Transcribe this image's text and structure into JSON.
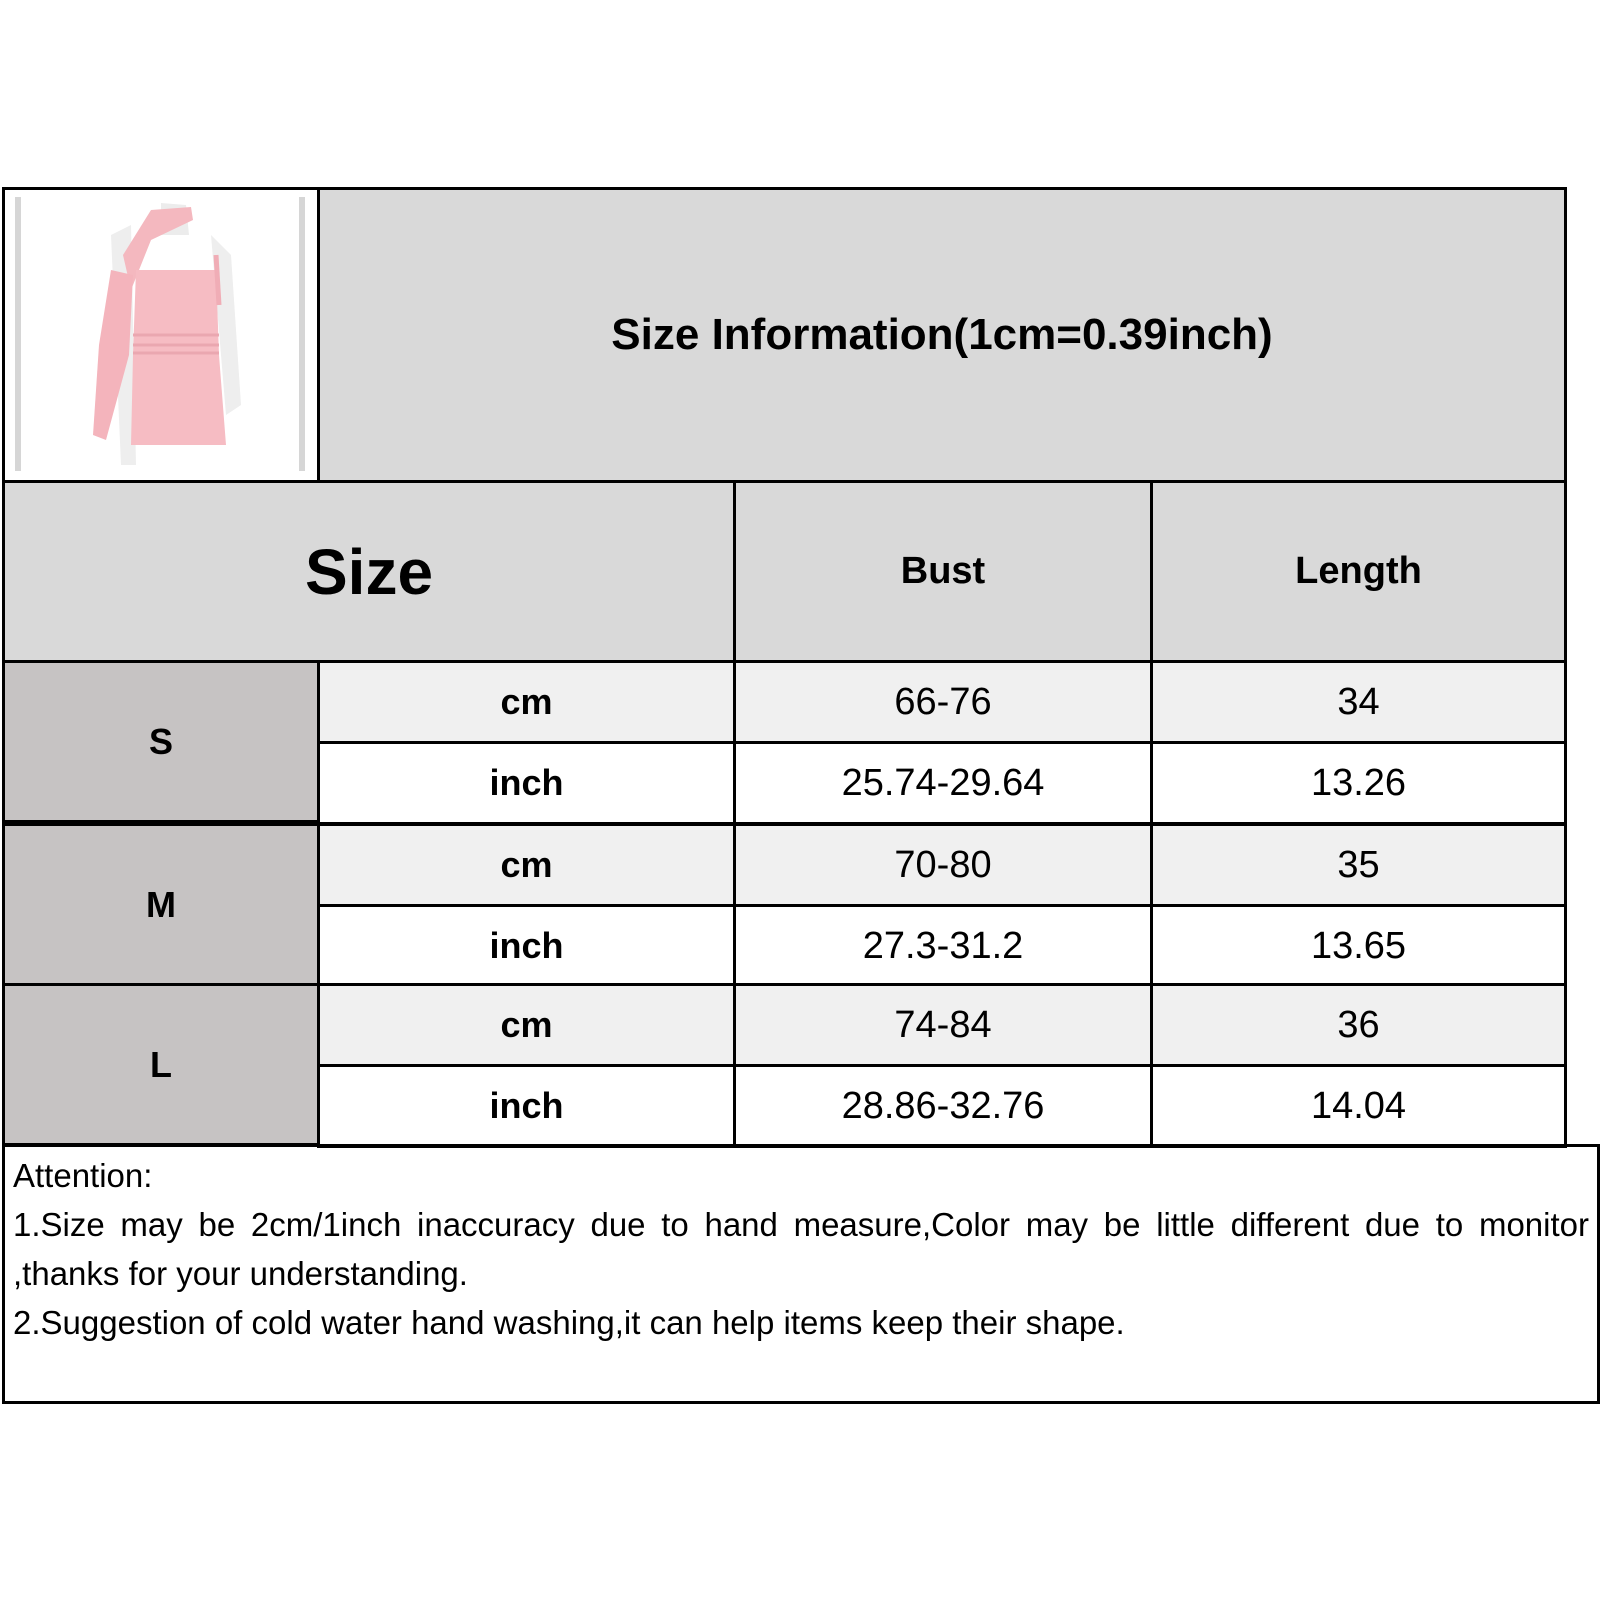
{
  "title": "Size Information(1cm=0.39inch)",
  "product_image": {
    "description_icon": "pink-one-shoulder-dress-photo",
    "color": "#f4b8bf"
  },
  "header": {
    "size": "Size",
    "columns": [
      "Bust",
      "Length"
    ]
  },
  "rows": [
    {
      "size": "S",
      "cm": {
        "unit": "cm",
        "bust": "66-76",
        "length": "34"
      },
      "inch": {
        "unit": "inch",
        "bust": "25.74-29.64",
        "length": "13.26"
      }
    },
    {
      "size": "M",
      "cm": {
        "unit": "cm",
        "bust": "70-80",
        "length": "35"
      },
      "inch": {
        "unit": "inch",
        "bust": "27.3-31.2",
        "length": "13.65"
      }
    },
    {
      "size": "L",
      "cm": {
        "unit": "cm",
        "bust": "74-84",
        "length": "36"
      },
      "inch": {
        "unit": "inch",
        "bust": "28.86-32.76",
        "length": "14.04"
      }
    }
  ],
  "notes": {
    "heading": "Attention:",
    "items": [
      "1.Size may be 2cm/1inch inaccuracy due to hand measure,Color may be little different due to monitor ,thanks for your understanding.",
      "2.Suggestion of cold water hand washing,it can help items keep their shape."
    ]
  },
  "colors": {
    "header_bg": "#d9d9d9",
    "size_bg": "#c6c3c3",
    "cm_row_bg": "#f0f0f0",
    "inch_row_bg": "#ffffff"
  }
}
